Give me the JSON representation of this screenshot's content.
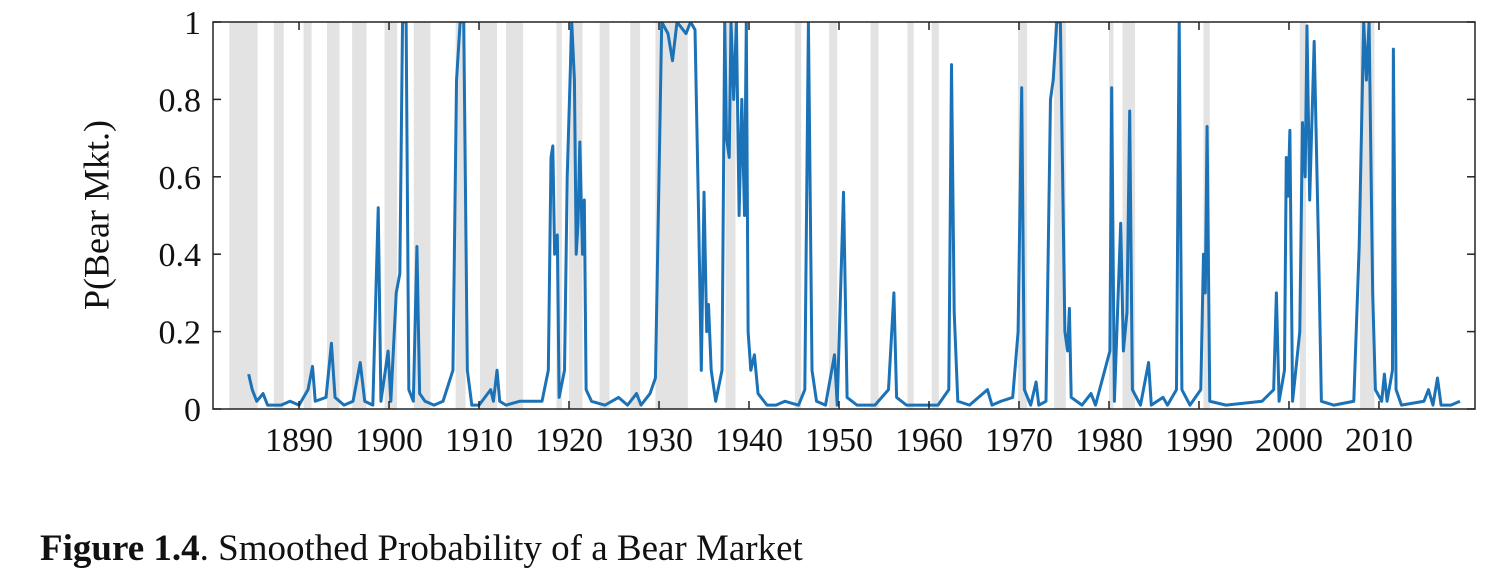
{
  "chart_data": {
    "type": "line",
    "ylabel": "P(Bear Mkt.)",
    "caption_label": "Figure 1.4",
    "caption_text": ". Smoothed Probability of a Bear Market",
    "xlim": [
      1880.44,
      2020.67
    ],
    "ylim": [
      0,
      1
    ],
    "xticks": [
      1890,
      1900,
      1910,
      1920,
      1930,
      1940,
      1950,
      1960,
      1970,
      1980,
      1990,
      2000,
      2010
    ],
    "yticks": [
      0,
      0.2,
      0.4,
      0.6,
      0.8,
      1
    ],
    "grid": false,
    "shade_color": "#e3e3e3",
    "shaded_periods": [
      [
        1882.25,
        1885.4
      ],
      [
        1887.2,
        1888.3
      ],
      [
        1890.5,
        1891.4
      ],
      [
        1893.1,
        1894.5
      ],
      [
        1895.9,
        1897.5
      ],
      [
        1899.5,
        1900.9
      ],
      [
        1902.75,
        1904.6
      ],
      [
        1907.4,
        1908.5
      ],
      [
        1910.1,
        1912.0
      ],
      [
        1913.0,
        1914.9
      ],
      [
        1918.6,
        1919.2
      ],
      [
        1920.0,
        1921.5
      ],
      [
        1923.4,
        1924.5
      ],
      [
        1926.8,
        1927.9
      ],
      [
        1929.6,
        1933.2
      ],
      [
        1937.4,
        1938.5
      ],
      [
        1945.1,
        1945.8
      ],
      [
        1948.9,
        1949.8
      ],
      [
        1953.5,
        1954.4
      ],
      [
        1957.6,
        1958.3
      ],
      [
        1960.3,
        1961.1
      ],
      [
        1969.9,
        1970.9
      ],
      [
        1973.9,
        1975.2
      ],
      [
        1980.0,
        1980.5
      ],
      [
        1981.5,
        1982.9
      ],
      [
        1990.5,
        1991.2
      ],
      [
        2001.2,
        2001.9
      ],
      [
        2007.9,
        2009.5
      ]
    ],
    "series": [
      {
        "color": "#1b72b7",
        "x": [
          1884.4,
          1884.8,
          1885.3,
          1886,
          1886.5,
          1888,
          1889,
          1890,
          1891,
          1891.5,
          1891.8,
          1893,
          1893.6,
          1894,
          1895,
          1896,
          1896.8,
          1897.3,
          1898.2,
          1898.8,
          1899.1,
          1899.9,
          1900.2,
          1900.8,
          1901.2,
          1901.5,
          1901.9,
          1902.2,
          1902.7,
          1903.1,
          1903.4,
          1904,
          1905,
          1906,
          1907.1,
          1907.5,
          1907.9,
          1908.3,
          1908.7,
          1909.2,
          1910,
          1911.3,
          1911.6,
          1912,
          1912.3,
          1913,
          1914.5,
          1915.5,
          1917,
          1917.7,
          1918,
          1918.2,
          1918.4,
          1918.7,
          1918.9,
          1919.5,
          1919.8,
          1920.3,
          1920.6,
          1920.8,
          1921,
          1921.2,
          1921.5,
          1921.7,
          1921.9,
          1922.5,
          1924,
          1925.5,
          1926.5,
          1927.5,
          1928,
          1929,
          1929.6,
          1930,
          1930.3,
          1931,
          1931.5,
          1932,
          1933,
          1933.5,
          1934,
          1934.4,
          1934.7,
          1935,
          1935.3,
          1935.5,
          1935.8,
          1936.3,
          1937,
          1937.3,
          1937.5,
          1937.8,
          1938,
          1938.3,
          1938.6,
          1938.9,
          1939.2,
          1939.5,
          1939.7,
          1939.9,
          1940.2,
          1940.6,
          1941,
          1942,
          1943,
          1944,
          1945.5,
          1946.2,
          1946.6,
          1947,
          1947.5,
          1948.5,
          1949.5,
          1949.8,
          1950.5,
          1950.9,
          1952,
          1954,
          1955.5,
          1956.1,
          1956.4,
          1957.5,
          1959,
          1961,
          1962.2,
          1962.5,
          1962.8,
          1963.2,
          1964.5,
          1966.5,
          1967,
          1968,
          1969.3,
          1969.9,
          1970.3,
          1970.6,
          1971.3,
          1971.9,
          1972.2,
          1973,
          1973.5,
          1973.8,
          1974.2,
          1974.6,
          1975.1,
          1975.4,
          1975.6,
          1975.8,
          1977,
          1978,
          1978.5,
          1980.1,
          1980.3,
          1980.6,
          1981.3,
          1981.6,
          1982,
          1982.3,
          1982.6,
          1983.5,
          1984.4,
          1984.7,
          1986,
          1986.5,
          1987.5,
          1987.8,
          1988.1,
          1989,
          1990.2,
          1990.5,
          1990.7,
          1990.9,
          1991.2,
          1993,
          1997,
          1998.3,
          1998.6,
          1998.9,
          1999.5,
          1999.7,
          1999.9,
          2000.1,
          2000.4,
          2001.2,
          2001.5,
          2001.8,
          2002,
          2002.3,
          2002.8,
          2003.3,
          2003.6,
          2005,
          2007.2,
          2007.8,
          2008.3,
          2008.6,
          2008.9,
          2009.3,
          2009.6,
          2010.3,
          2010.6,
          2010.9,
          2011.5,
          2011.6,
          2011.9,
          2012.5,
          2015,
          2015.5,
          2016,
          2016.5,
          2016.9,
          2018,
          2019
        ],
        "values": [
          0.09,
          0.05,
          0.02,
          0.04,
          0.01,
          0.01,
          0.02,
          0.01,
          0.05,
          0.11,
          0.02,
          0.03,
          0.17,
          0.03,
          0.01,
          0.02,
          0.12,
          0.02,
          0.01,
          0.52,
          0.02,
          0.15,
          0.02,
          0.3,
          0.35,
          1,
          1,
          0.05,
          0.02,
          0.42,
          0.04,
          0.02,
          0.01,
          0.02,
          0.1,
          0.85,
          1,
          1,
          0.1,
          0.01,
          0.01,
          0.05,
          0.02,
          0.1,
          0.02,
          0.01,
          0.02,
          0.02,
          0.02,
          0.1,
          0.65,
          0.68,
          0.4,
          0.45,
          0.03,
          0.1,
          0.6,
          1,
          0.85,
          0.4,
          0.48,
          0.69,
          0.4,
          0.54,
          0.05,
          0.02,
          0.01,
          0.03,
          0.01,
          0.04,
          0.01,
          0.04,
          0.08,
          0.6,
          1,
          0.97,
          0.9,
          1,
          0.97,
          1,
          0.98,
          0.5,
          0.1,
          0.56,
          0.2,
          0.27,
          0.1,
          0.02,
          0.1,
          1,
          0.7,
          0.65,
          1,
          0.8,
          1,
          0.5,
          0.8,
          0.5,
          1,
          0.2,
          0.1,
          0.14,
          0.04,
          0.01,
          0.01,
          0.02,
          0.01,
          0.05,
          1,
          0.1,
          0.02,
          0.01,
          0.14,
          0.01,
          0.56,
          0.03,
          0.01,
          0.01,
          0.05,
          0.3,
          0.03,
          0.01,
          0.01,
          0.01,
          0.05,
          0.89,
          0.25,
          0.02,
          0.01,
          0.05,
          0.01,
          0.02,
          0.03,
          0.2,
          0.83,
          0.05,
          0.01,
          0.07,
          0.01,
          0.02,
          0.8,
          0.85,
          1,
          1,
          0.2,
          0.15,
          0.26,
          0.03,
          0.01,
          0.04,
          0.01,
          0.15,
          0.83,
          0.02,
          0.48,
          0.15,
          0.25,
          0.77,
          0.05,
          0.01,
          0.12,
          0.01,
          0.03,
          0.01,
          0.05,
          1,
          0.05,
          0.01,
          0.05,
          0.4,
          0.3,
          0.73,
          0.02,
          0.01,
          0.02,
          0.05,
          0.3,
          0.02,
          0.1,
          0.65,
          0.55,
          0.72,
          0.02,
          0.2,
          0.74,
          0.6,
          0.99,
          0.54,
          0.95,
          0.4,
          0.02,
          0.01,
          0.02,
          0.42,
          1,
          0.85,
          1,
          0.3,
          0.05,
          0.02,
          0.09,
          0.02,
          0.1,
          0.93,
          0.05,
          0.01,
          0.02,
          0.05,
          0.01,
          0.08,
          0.01,
          0.01,
          0.02
        ]
      }
    ]
  }
}
